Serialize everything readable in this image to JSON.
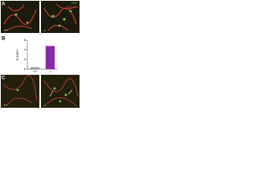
{
  "panel_labels": [
    "A",
    "B",
    "C"
  ],
  "image_labels": {
    "top_left": "+/+",
    "top_right": "-/-",
    "bottom_left": "+/+",
    "bottom_right": "-/-",
    "stain_1": "Ki67",
    "stain_2": "PECAM"
  },
  "chart_data": {
    "type": "bar",
    "y_label": "% Ki67+",
    "categories": [
      "+/+",
      "-/-"
    ],
    "values": [
      0.4,
      4.8
    ],
    "colors": [
      "#9a9a9a",
      "#8a2aa8"
    ],
    "ylim": [
      0,
      6
    ],
    "yticks": [
      0,
      2,
      4,
      6
    ]
  }
}
